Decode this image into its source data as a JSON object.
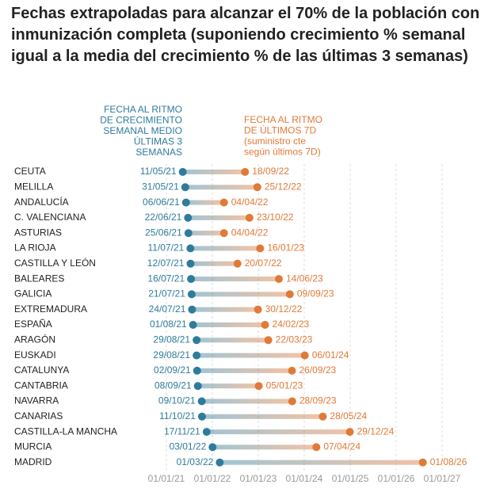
{
  "chart_data": {
    "type": "dumbbell",
    "title": "Fechas extrapoladas para alcanzar el 70% de la población con inmunización completa (suponiendo crecimiento % semanal igual a la media del crecimiento % de las últimas 3 semanas)",
    "categories": [
      "CEUTA",
      "MELILLA",
      "ANDALUCÍA",
      "C. VALENCIANA",
      "ASTURIAS",
      "LA RIOJA",
      "CASTILLA Y LEÓN",
      "BALEARES",
      "GALICIA",
      "EXTREMADURA",
      "ESPAÑA",
      "ARAGÓN",
      "EUSKADI",
      "CATALUNYA",
      "CANTABRIA",
      "NAVARRA",
      "CANARIAS",
      "CASTILLA-LA MANCHA",
      "MURCIA",
      "MADRID"
    ],
    "series": [
      {
        "name": [
          "FECHA AL RITMO",
          "DE CRECIMIENTO",
          "SEMANAL MEDIO",
          "ÚLTIMAS 3",
          "SEMANAS"
        ],
        "color": "#2f7b9c",
        "values": [
          "11/05/21",
          "31/05/21",
          "06/06/21",
          "22/06/21",
          "25/06/21",
          "11/07/21",
          "12/07/21",
          "16/07/21",
          "21/07/21",
          "24/07/21",
          "01/08/21",
          "29/08/21",
          "29/08/21",
          "02/09/21",
          "08/09/21",
          "09/10/21",
          "11/10/21",
          "17/11/21",
          "03/01/22",
          "01/03/22"
        ]
      },
      {
        "name": [
          "FECHA AL RITMO",
          "DE ÚLTIMOS 7D",
          "(suministro cte",
          "según últimos 7D)"
        ],
        "color": "#e07a38",
        "values": [
          "18/09/22",
          "25/12/22",
          "04/04/22",
          "23/10/22",
          "04/04/22",
          "16/01/23",
          "20/07/22",
          "14/06/23",
          "09/09/23",
          "30/12/22",
          "24/02/23",
          "22/03/23",
          "06/01/24",
          "26/09/23",
          "05/01/23",
          "28/09/23",
          "28/05/24",
          "29/12/24",
          "07/04/24",
          "01/08/26"
        ]
      }
    ],
    "xlim": [
      "01/01/21",
      "01/01/27"
    ],
    "xticks": [
      "01/01/21",
      "01/01/22",
      "01/01/23",
      "01/01/24",
      "01/01/25",
      "01/01/26",
      "01/01/27"
    ],
    "grid": true
  }
}
